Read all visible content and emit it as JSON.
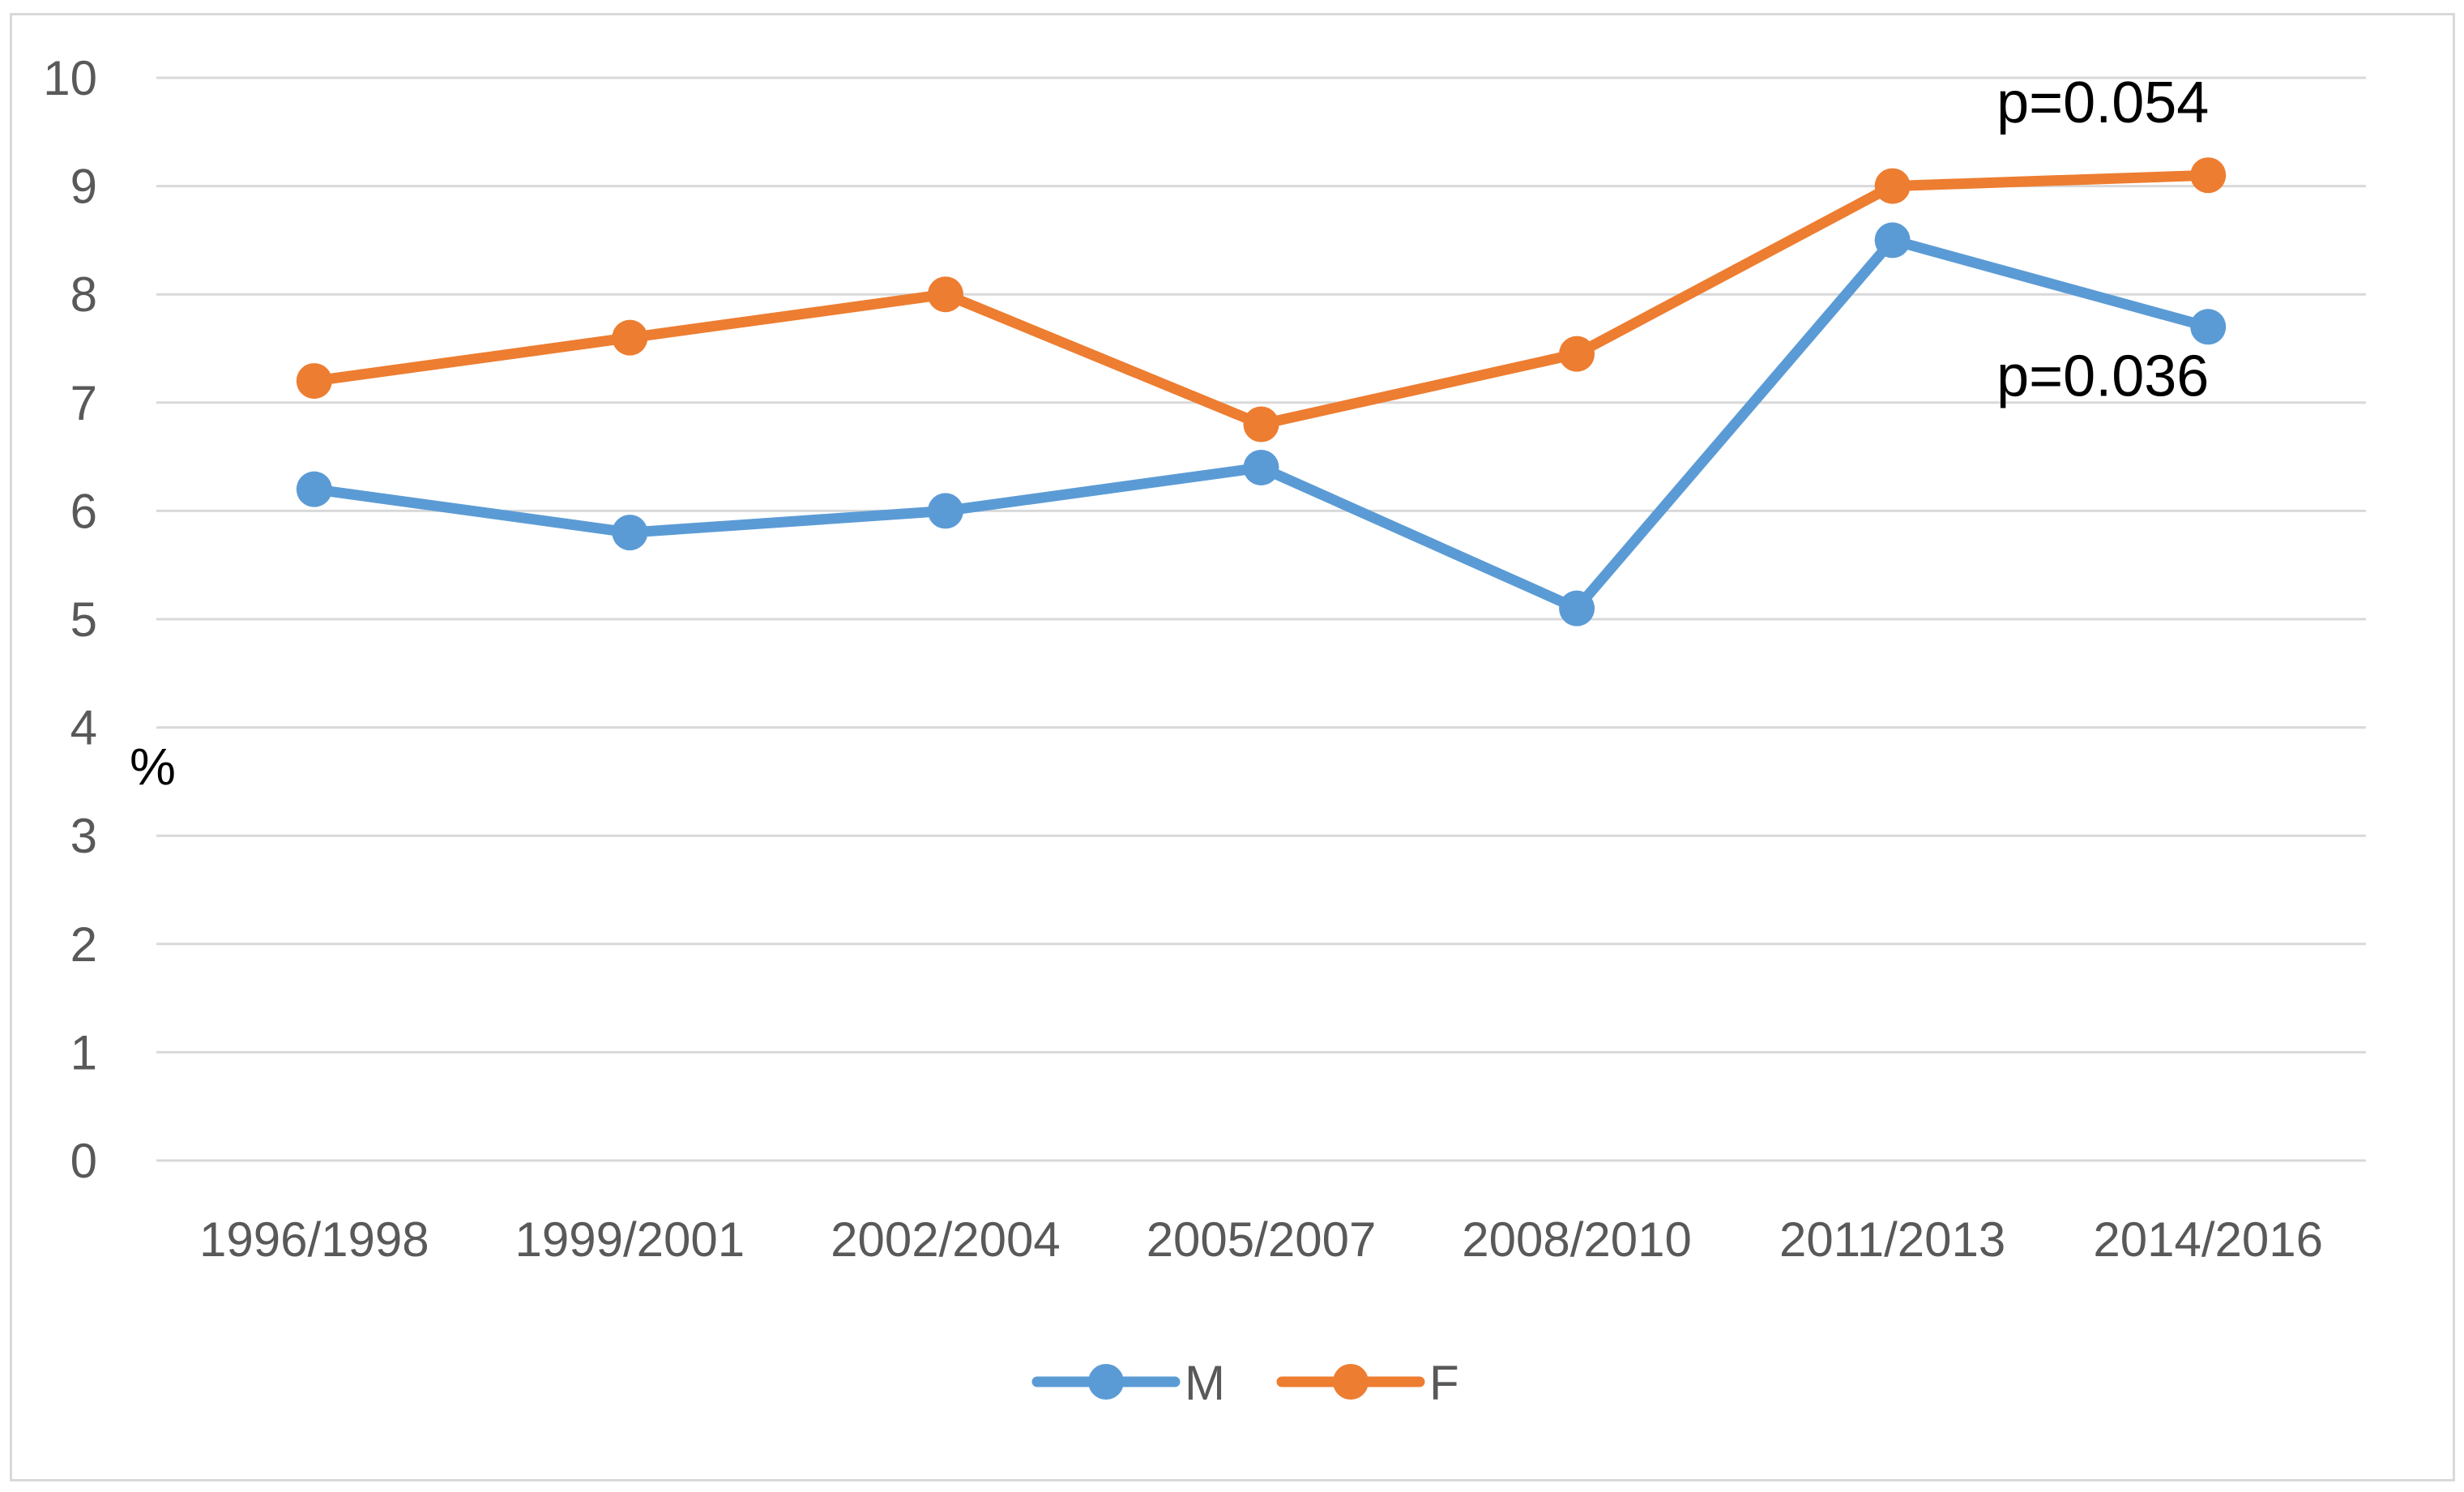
{
  "chart_data": {
    "type": "line",
    "title": "",
    "xlabel": "",
    "ylabel": "%",
    "ylim": [
      0,
      10
    ],
    "yticks": [
      0,
      1,
      2,
      3,
      4,
      5,
      6,
      7,
      8,
      9,
      10
    ],
    "grid": true,
    "legend_position": "bottom",
    "categories": [
      "1996/1998",
      "1999/2001",
      "2002/2004",
      "2005/2007",
      "2008/2010",
      "2011/2013",
      "2014/2016"
    ],
    "series": [
      {
        "name": "M",
        "color": "#5b9bd5",
        "values": [
          6.2,
          5.8,
          6.0,
          6.4,
          5.1,
          8.5,
          7.7
        ]
      },
      {
        "name": "F",
        "color": "#ed7d31",
        "values": [
          7.2,
          7.6,
          8.0,
          6.8,
          7.45,
          9.0,
          9.1
        ]
      }
    ],
    "annotations": [
      {
        "text": "p=0.054",
        "series": "F",
        "category": "2014/2016"
      },
      {
        "text": "p=0.036",
        "series": "M",
        "category": "2014/2016"
      }
    ]
  }
}
